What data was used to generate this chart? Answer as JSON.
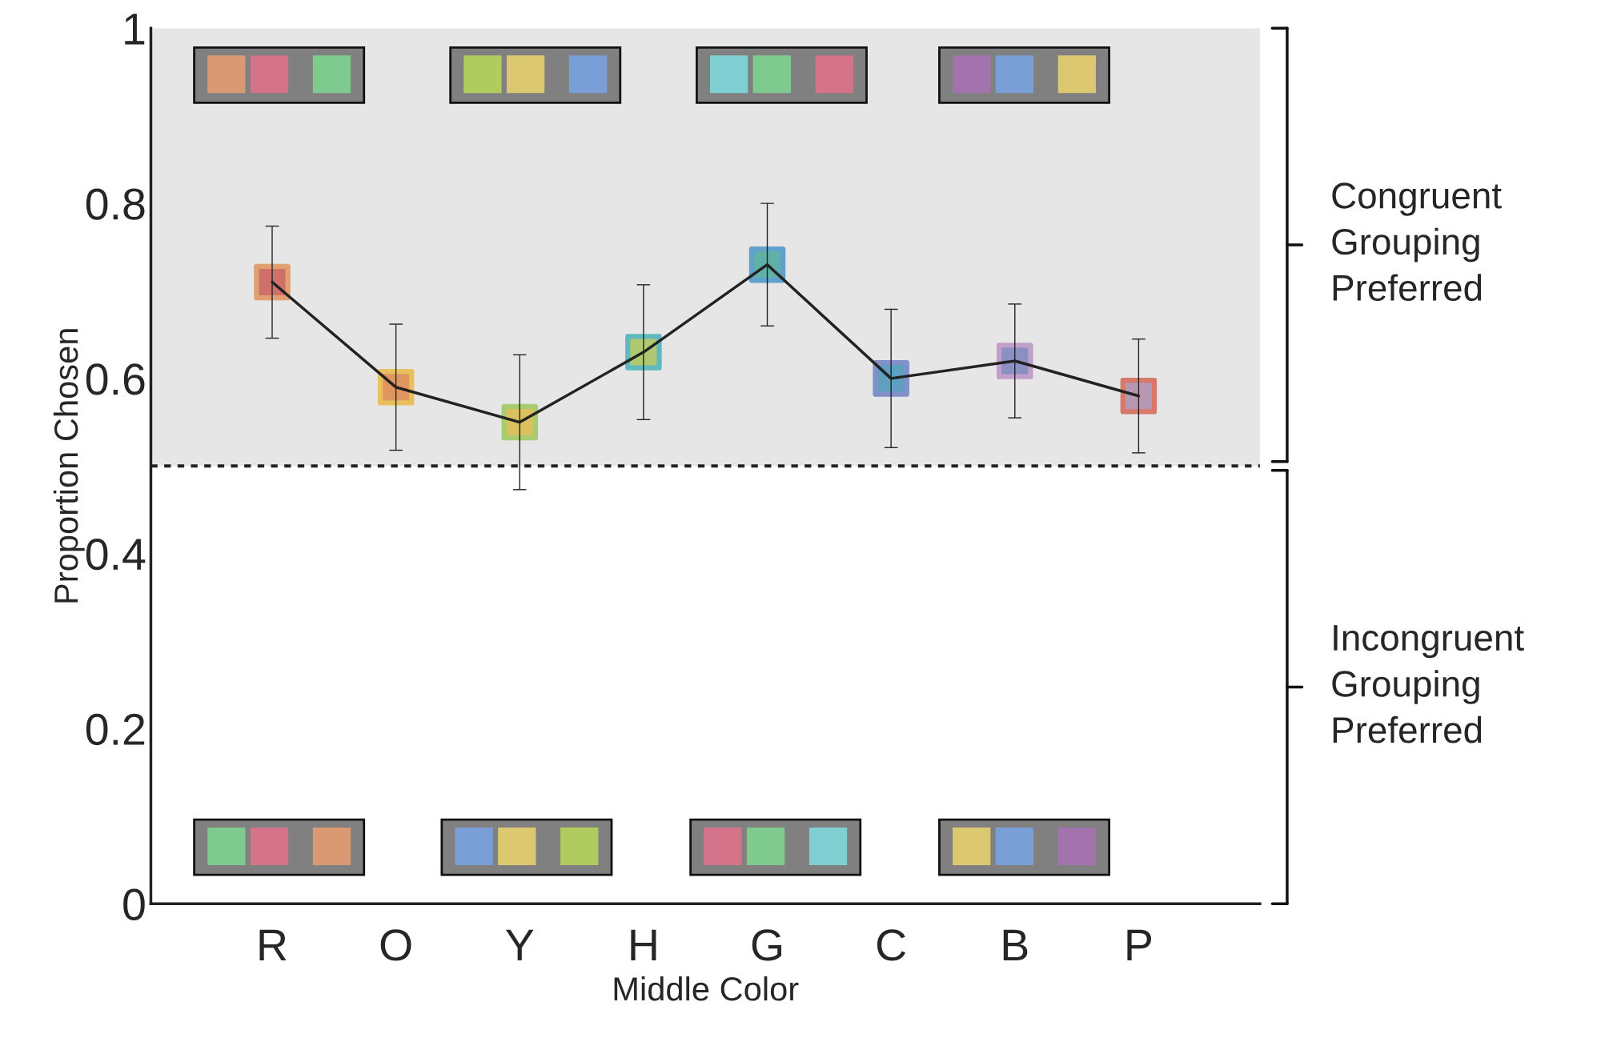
{
  "chart_data": {
    "type": "line",
    "xlabel": "Middle Color",
    "ylabel": "Proportion Chosen",
    "categories": [
      "R",
      "O",
      "Y",
      "H",
      "G",
      "C",
      "B",
      "P"
    ],
    "series": [
      {
        "color": "#222222",
        "marker": "square",
        "values": [
          0.71,
          0.59,
          0.55,
          0.63,
          0.73,
          0.6,
          0.62,
          0.58
        ],
        "errors": [
          0.064,
          0.072,
          0.077,
          0.077,
          0.07,
          0.079,
          0.065,
          0.065
        ],
        "colors": [
          "#d0706a",
          "#e0955f",
          "#dcc060",
          "#b0c870",
          "#60b0a8",
          "#5f9fc0",
          "#8a90c0",
          "#b898b0"
        ]
      }
    ],
    "ylim": [
      0,
      1
    ],
    "yticks": [
      0,
      0.2,
      0.4,
      0.6,
      0.8,
      1
    ],
    "bands": [
      {
        "axis": "y",
        "from": 0.5,
        "to": 1,
        "color": "#e6e6e6"
      }
    ],
    "ref_lines": [
      {
        "axis": "y",
        "value": 0.5,
        "color": "#222222",
        "line_style": "dotted"
      }
    ],
    "annotations": [
      "Congruent\nGrouping\nPreferred",
      "Incongruent\nGrouping\nPreferred"
    ],
    "grid": false,
    "legend": false
  }
}
